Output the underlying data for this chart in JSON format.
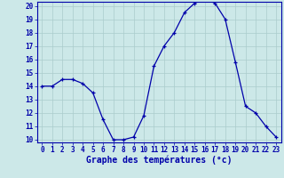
{
  "hours": [
    0,
    1,
    2,
    3,
    4,
    5,
    6,
    7,
    8,
    9,
    10,
    11,
    12,
    13,
    14,
    15,
    16,
    17,
    18,
    19,
    20,
    21,
    22,
    23
  ],
  "temps": [
    14.0,
    14.0,
    14.5,
    14.5,
    14.2,
    13.5,
    11.5,
    10.0,
    10.0,
    10.2,
    11.8,
    15.5,
    17.0,
    18.0,
    19.5,
    20.2,
    20.5,
    20.2,
    19.0,
    15.8,
    12.5,
    12.0,
    11.0,
    10.2
  ],
  "xlabel": "Graphe des températures (°c)",
  "ylim": [
    10,
    20
  ],
  "yticks": [
    10,
    11,
    12,
    13,
    14,
    15,
    16,
    17,
    18,
    19,
    20
  ],
  "xticks": [
    0,
    1,
    2,
    3,
    4,
    5,
    6,
    7,
    8,
    9,
    10,
    11,
    12,
    13,
    14,
    15,
    16,
    17,
    18,
    19,
    20,
    21,
    22,
    23
  ],
  "line_color": "#0000aa",
  "marker": "+",
  "bg_color": "#cce8e8",
  "grid_color": "#aacccc",
  "axis_color": "#0000aa",
  "label_color": "#0000aa",
  "tick_color": "#0000aa",
  "xlabel_fontsize": 7,
  "tick_fontsize": 5.5
}
